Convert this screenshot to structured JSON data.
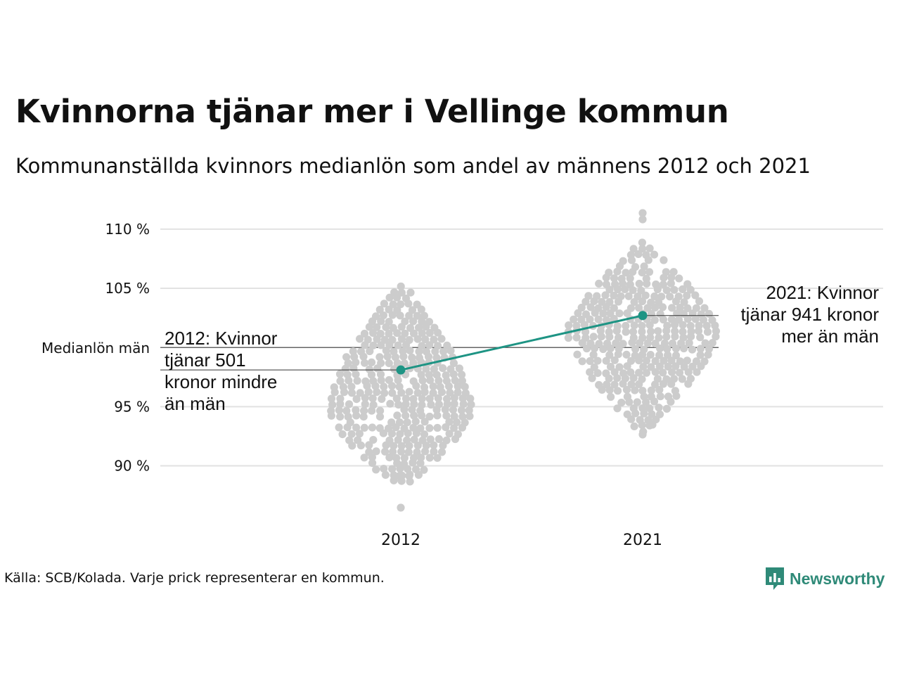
{
  "title": "Kvinnorna tjänar mer i Vellinge kommun",
  "subtitle": "Kommunanställda kvinnors medianlön som andel av männens 2012 och 2021",
  "source": "Källa: SCB/Kolada. Varje prick representerar en kommun.",
  "brand": {
    "name": "Newsworthy",
    "icon": "bar-chart-speech-bubble-icon"
  },
  "colors": {
    "dots": "#cccccc",
    "highlight": "#1e9484",
    "grid": "#e2e2e2",
    "refline": "#333333",
    "text": "#111111",
    "brand": "#2f8a78"
  },
  "chart_data": {
    "type": "scatter",
    "subtype": "beeswarm",
    "categories": [
      "2012",
      "2021"
    ],
    "y_ticks": [
      {
        "value": 90,
        "label": "90 %"
      },
      {
        "value": 95,
        "label": "95 %"
      },
      {
        "value": 105,
        "label": "105 %"
      },
      {
        "value": 110,
        "label": "110 %"
      }
    ],
    "ylim": [
      86,
      111.5
    ],
    "grid": true,
    "reference_line": {
      "value": 100,
      "label": "Medianlön män"
    },
    "distribution_summary": [
      {
        "category": "2012",
        "min": 86.6,
        "max": 105.1,
        "center": 95.5
      },
      {
        "category": "2021",
        "min": 92.5,
        "max": 111.3,
        "center": 101.5
      }
    ],
    "highlight_series": {
      "points": [
        {
          "x": "2012",
          "y": 98.1
        },
        {
          "x": "2021",
          "y": 102.7
        }
      ]
    },
    "annotations": [
      {
        "x": "2012",
        "lines": [
          "2012: Kvinnor",
          "tjänar 501",
          "kronor mindre",
          "än män"
        ]
      },
      {
        "x": "2021",
        "lines": [
          "2021: Kvinnor",
          "tjänar 941 kronor",
          "mer än män"
        ]
      }
    ]
  }
}
